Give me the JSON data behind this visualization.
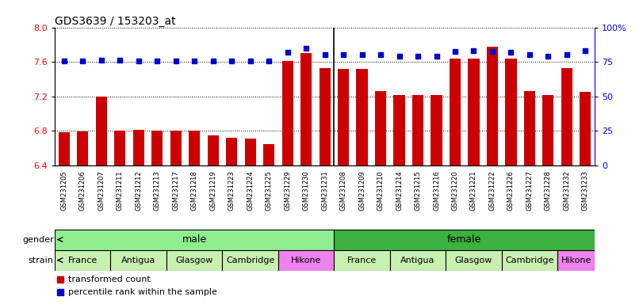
{
  "title": "GDS3639 / 153203_at",
  "samples": [
    "GSM231205",
    "GSM231206",
    "GSM231207",
    "GSM231211",
    "GSM231212",
    "GSM231213",
    "GSM231217",
    "GSM231218",
    "GSM231219",
    "GSM231223",
    "GSM231224",
    "GSM231225",
    "GSM231229",
    "GSM231230",
    "GSM231231",
    "GSM231208",
    "GSM231209",
    "GSM231210",
    "GSM231214",
    "GSM231215",
    "GSM231216",
    "GSM231220",
    "GSM231221",
    "GSM231222",
    "GSM231226",
    "GSM231227",
    "GSM231228",
    "GSM231232",
    "GSM231233"
  ],
  "bar_values": [
    6.78,
    6.79,
    7.2,
    6.8,
    6.81,
    6.8,
    6.8,
    6.8,
    6.75,
    6.72,
    6.71,
    6.65,
    7.61,
    7.7,
    7.53,
    7.52,
    7.52,
    7.26,
    7.22,
    7.22,
    7.22,
    7.64,
    7.64,
    7.78,
    7.64,
    7.26,
    7.22,
    7.53,
    7.25
  ],
  "percentile_values": [
    75.5,
    75.5,
    76.5,
    76.5,
    75.5,
    75.5,
    75.5,
    75.5,
    75.5,
    75.5,
    75.5,
    75.5,
    82.0,
    85.0,
    80.0,
    80.0,
    80.0,
    80.0,
    79.0,
    79.0,
    79.0,
    82.5,
    83.0,
    82.5,
    82.0,
    80.0,
    79.0,
    80.5,
    83.0
  ],
  "gender_color_male": "#90ee90",
  "gender_color_female": "#3cb040",
  "bar_color": "#cc0000",
  "percentile_color": "#0000cc",
  "ylim_left": [
    6.4,
    8.0
  ],
  "ylim_right": [
    0,
    100
  ],
  "yticks_left": [
    6.4,
    6.8,
    7.2,
    7.6,
    8.0
  ],
  "yticks_right": [
    0,
    25,
    50,
    75,
    100
  ],
  "background_color": "#ffffff",
  "strain_groups": [
    {
      "name": "France",
      "start": 0,
      "end": 3,
      "color": "#c8f0b0"
    },
    {
      "name": "Antigua",
      "start": 3,
      "end": 6,
      "color": "#c8f0b0"
    },
    {
      "name": "Glasgow",
      "start": 6,
      "end": 9,
      "color": "#c8f0b0"
    },
    {
      "name": "Cambridge",
      "start": 9,
      "end": 12,
      "color": "#c8f0b0"
    },
    {
      "name": "Hikone",
      "start": 12,
      "end": 15,
      "color": "#ee82ee"
    },
    {
      "name": "France",
      "start": 15,
      "end": 18,
      "color": "#c8f0b0"
    },
    {
      "name": "Antigua",
      "start": 18,
      "end": 21,
      "color": "#c8f0b0"
    },
    {
      "name": "Glasgow",
      "start": 21,
      "end": 24,
      "color": "#c8f0b0"
    },
    {
      "name": "Cambridge",
      "start": 24,
      "end": 27,
      "color": "#c8f0b0"
    },
    {
      "name": "Hikone",
      "start": 27,
      "end": 29,
      "color": "#ee82ee"
    }
  ]
}
